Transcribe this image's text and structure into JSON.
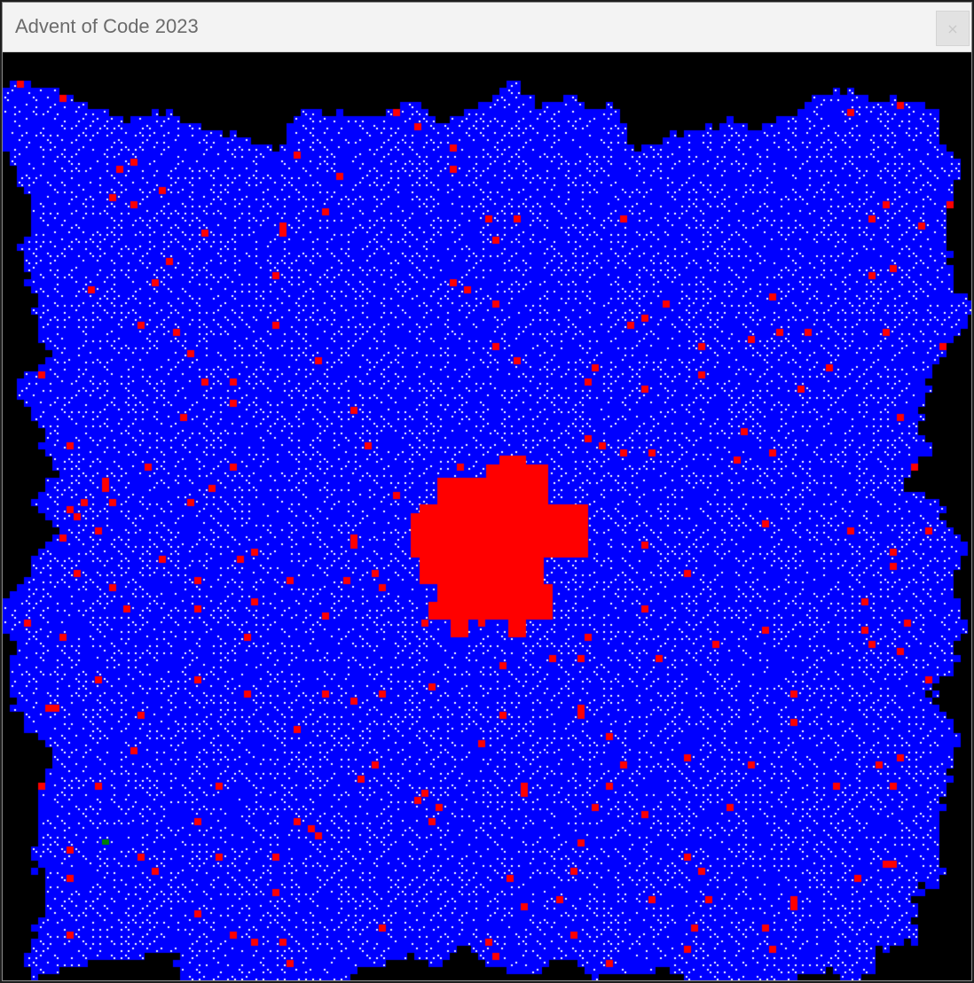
{
  "window": {
    "title": "Advent of Code 2023",
    "close_label": "×"
  },
  "grid": {
    "background": "#000000",
    "reachable_color": "#0000ff",
    "rock_color": "#ffffff",
    "region_color": "#ff0000",
    "start_color": "#008000"
  },
  "icons": {
    "close": "close-icon"
  }
}
